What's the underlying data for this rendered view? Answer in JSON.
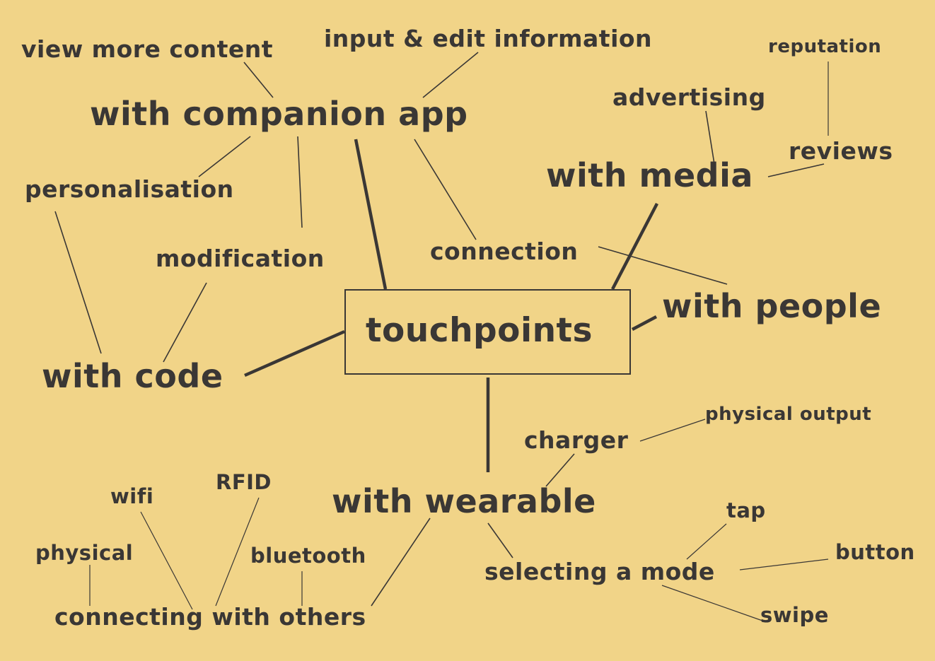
{
  "center": "touchpoints",
  "nodes": {
    "with_companion_app": "with companion app",
    "view_more_content": "view more content",
    "input_edit_information": "input & edit information",
    "personalisation": "personalisation",
    "modification": "modification",
    "connection": "connection",
    "with_media": "with media",
    "advertising": "advertising",
    "reputation": "reputation",
    "reviews": "reviews",
    "with_people": "with people",
    "with_code": "with code",
    "with_wearable": "with wearable",
    "charger": "charger",
    "physical_output": "physical output",
    "selecting_a_mode": "selecting a mode",
    "tap": "tap",
    "button": "button",
    "swipe": "swipe",
    "connecting_with_others": "connecting with others",
    "wifi": "wifi",
    "rfid": "RFID",
    "physical": "physical",
    "bluetooth": "bluetooth"
  },
  "colors": {
    "background": "#f1d488",
    "ink": "#3a3735"
  }
}
